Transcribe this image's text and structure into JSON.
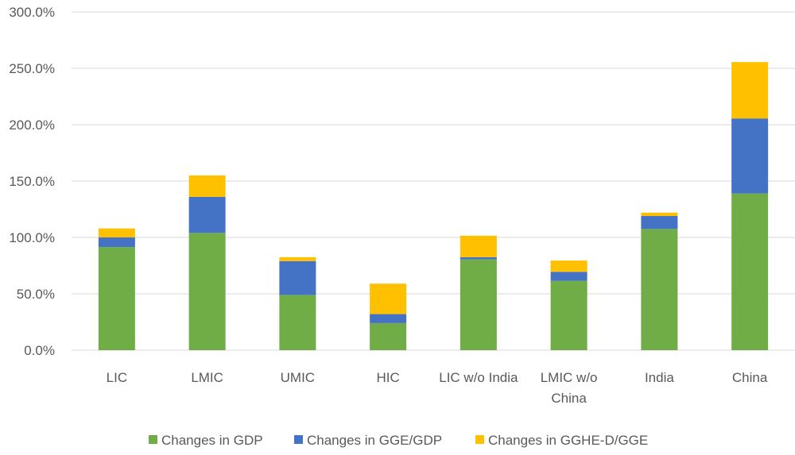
{
  "chart_data": {
    "type": "bar",
    "stacked": true,
    "title": "",
    "xlabel": "",
    "ylabel": "",
    "ylim": [
      0,
      300
    ],
    "y_ticks": [
      "0.0%",
      "50.0%",
      "100.0%",
      "150.0%",
      "200.0%",
      "250.0%",
      "300.0%"
    ],
    "y_tick_values": [
      0,
      50,
      100,
      150,
      200,
      250,
      300
    ],
    "categories": [
      [
        "LIC"
      ],
      [
        "LMIC"
      ],
      [
        "UMIC"
      ],
      [
        "HIC"
      ],
      [
        "LIC w/o India"
      ],
      [
        "LMIC w/o",
        "China"
      ],
      [
        "India"
      ],
      [
        "China"
      ]
    ],
    "series": [
      {
        "name": "Changes in GDP",
        "color": "#70ad47",
        "values": [
          91.5,
          104,
          49,
          24,
          80.5,
          61.5,
          107.5,
          139
        ]
      },
      {
        "name": "Changes in GGE/GDP",
        "color": "#4472c4",
        "values": [
          8.5,
          32,
          30,
          8,
          2,
          8,
          11.5,
          66.5
        ]
      },
      {
        "name": "Changes in GGHE-D/GGE",
        "color": "#ffc000",
        "values": [
          8,
          19,
          3.5,
          27,
          19,
          10,
          3,
          50
        ]
      }
    ],
    "grid": true,
    "legend_position": "bottom"
  }
}
